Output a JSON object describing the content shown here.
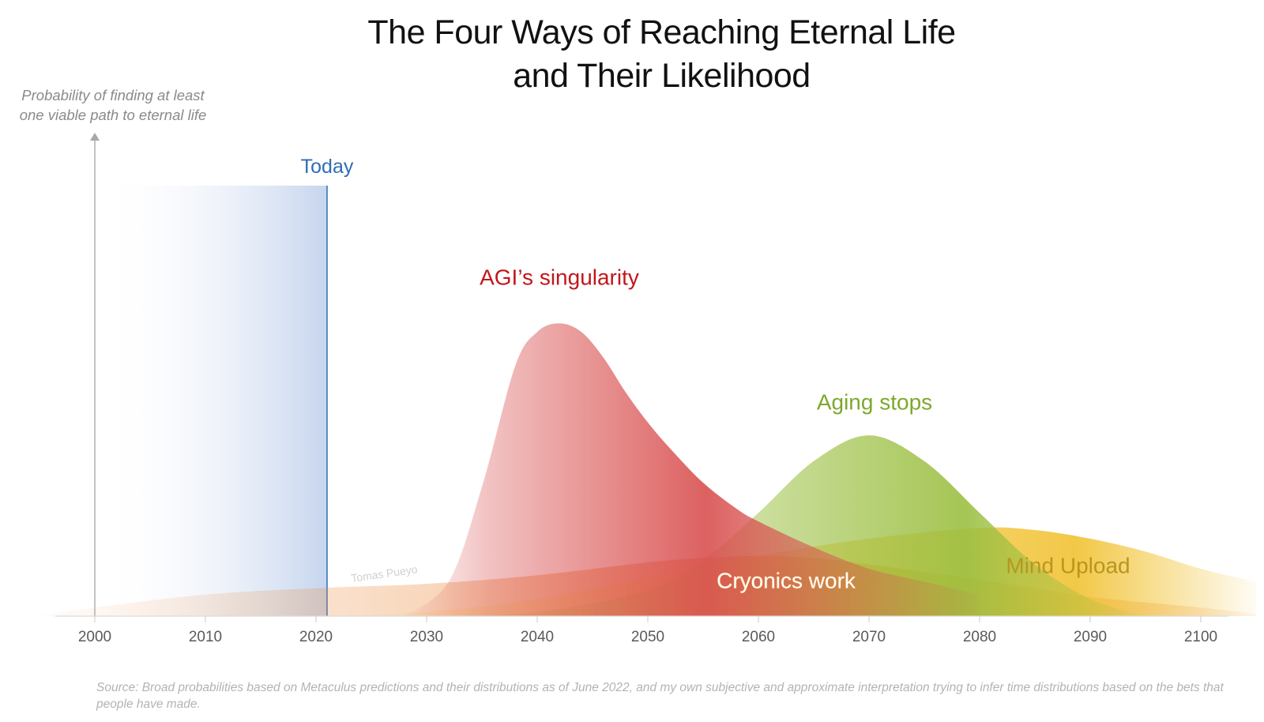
{
  "chart_data": {
    "type": "area",
    "title_lines": [
      "The Four Ways of Reaching Eternal Life",
      "and Their Likelihood"
    ],
    "ylabel_lines": [
      "Probability of finding at least",
      "one viable path to eternal life"
    ],
    "xticks": [
      "2000",
      "2010",
      "2020",
      "2030",
      "2040",
      "2050",
      "2060",
      "2070",
      "2080",
      "2090",
      "2100"
    ],
    "xlim": [
      2000,
      2100
    ],
    "ylim": [
      0,
      1
    ],
    "today": {
      "label": "Today",
      "year": 2021,
      "color": "#2e6db4",
      "band_color": "#c6d5ee"
    },
    "series": [
      {
        "name": "Cryonics work",
        "color": "#ec8c3e",
        "label_color": "#ffffff",
        "label_outline": "#ec8c3e",
        "label_x": 2062.5,
        "label_y": 0.065,
        "x": [
          1995,
          2000,
          2010,
          2020,
          2030,
          2040,
          2050,
          2055,
          2060,
          2065,
          2070,
          2080,
          2090,
          2100,
          2105
        ],
        "y": [
          0.0,
          0.02,
          0.05,
          0.065,
          0.075,
          0.095,
          0.125,
          0.135,
          0.14,
          0.135,
          0.12,
          0.085,
          0.045,
          0.02,
          0.005
        ]
      },
      {
        "name": "Mind Upload",
        "color": "#f1c232",
        "label_color": "#b8961e",
        "label_x": 2088,
        "label_y": 0.1,
        "x": [
          2020,
          2030,
          2040,
          2050,
          2060,
          2070,
          2080,
          2085,
          2090,
          2095,
          2100,
          2105
        ],
        "y": [
          0.0,
          0.01,
          0.04,
          0.09,
          0.14,
          0.18,
          0.205,
          0.2,
          0.18,
          0.15,
          0.11,
          0.08
        ]
      },
      {
        "name": "Aging stops",
        "color": "#9bbf41",
        "label_color": "#7ea82c",
        "label_x": 2070.5,
        "label_y": 0.48,
        "x": [
          2030,
          2040,
          2050,
          2055,
          2060,
          2065,
          2070,
          2075,
          2080,
          2085,
          2090,
          2095
        ],
        "y": [
          0.0,
          0.01,
          0.06,
          0.13,
          0.24,
          0.36,
          0.42,
          0.36,
          0.24,
          0.12,
          0.04,
          0.0
        ]
      },
      {
        "name": "AGI’s singularity",
        "color": "#d94f4f",
        "label_color": "#c2161b",
        "label_x": 2042,
        "label_y": 0.77,
        "x": [
          2028,
          2032,
          2035,
          2038,
          2040,
          2042,
          2044,
          2046,
          2048,
          2050,
          2052,
          2055,
          2058,
          2060,
          2065,
          2070,
          2075,
          2080
        ],
        "y": [
          0.0,
          0.08,
          0.3,
          0.58,
          0.66,
          0.68,
          0.66,
          0.6,
          0.52,
          0.45,
          0.39,
          0.31,
          0.25,
          0.22,
          0.16,
          0.11,
          0.08,
          0.05
        ]
      }
    ],
    "watermark": "Tomas Pueyo",
    "source": "Source: Broad probabilities based on Metaculus predictions and their distributions as of June 2022, and my own subjective and approximate interpretation trying to infer time distributions based on the bets that people have made."
  }
}
